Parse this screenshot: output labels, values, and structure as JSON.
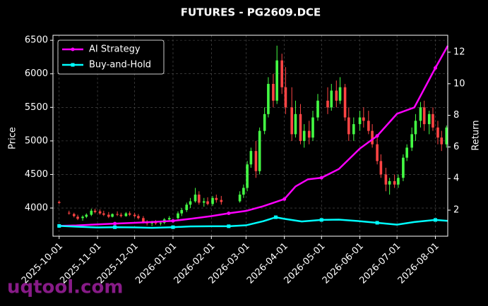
{
  "chart_data": {
    "type": "candlestick",
    "title": "FUTURES - PG2609.DCE",
    "ylabel": "Price",
    "y2label": "Return",
    "watermark": "uqtool.com",
    "background": "#000000",
    "grid": true,
    "legend_position": "upper left",
    "up_color": "#44ff44",
    "down_color": "#ff4444",
    "xlim": [
      "2025-09-26",
      "2026-08-11"
    ],
    "xticks": [
      "2025-10-01",
      "2025-11-01",
      "2025-12-01",
      "2026-01-01",
      "2026-02-01",
      "2026-03-01",
      "2026-04-01",
      "2026-05-01",
      "2026-06-01",
      "2026-07-01",
      "2026-08-01"
    ],
    "ylim": [
      3580,
      6575
    ],
    "yticks": [
      4000,
      4500,
      5000,
      5500,
      6000,
      6500
    ],
    "y2lim": [
      0.35,
      13.07
    ],
    "y2ticks": [
      2,
      4,
      6,
      8,
      10,
      12
    ],
    "candles": {
      "x": [
        "2025-10-01",
        "2025-10-09",
        "2025-10-13",
        "2025-10-16",
        "2025-10-20",
        "2025-10-23",
        "2025-10-27",
        "2025-10-30",
        "2025-11-03",
        "2025-11-06",
        "2025-11-10",
        "2025-11-13",
        "2025-11-17",
        "2025-11-20",
        "2025-11-24",
        "2025-11-27",
        "2025-12-01",
        "2025-12-04",
        "2025-12-08",
        "2025-12-11",
        "2025-12-15",
        "2025-12-18",
        "2025-12-22",
        "2025-12-25",
        "2025-12-29",
        "2026-01-05",
        "2026-01-08",
        "2026-01-12",
        "2026-01-15",
        "2026-01-19",
        "2026-01-22",
        "2026-01-26",
        "2026-01-29",
        "2026-02-02",
        "2026-02-05",
        "2026-02-09",
        "2026-02-24",
        "2026-02-27",
        "2026-03-02",
        "2026-03-05",
        "2026-03-09",
        "2026-03-12",
        "2026-03-16",
        "2026-03-19",
        "2026-03-23",
        "2026-03-26",
        "2026-03-30",
        "2026-04-02",
        "2026-04-07",
        "2026-04-10",
        "2026-04-14",
        "2026-04-17",
        "2026-04-21",
        "2026-04-24",
        "2026-04-28",
        "2026-05-06",
        "2026-05-09",
        "2026-05-13",
        "2026-05-16",
        "2026-05-20",
        "2026-05-23",
        "2026-05-27",
        "2026-06-01",
        "2026-06-04",
        "2026-06-08",
        "2026-06-11",
        "2026-06-15",
        "2026-06-18",
        "2026-06-22",
        "2026-06-25",
        "2026-06-29",
        "2026-07-02",
        "2026-07-06",
        "2026-07-09",
        "2026-07-13",
        "2026-07-16",
        "2026-07-20",
        "2026-07-23",
        "2026-07-27",
        "2026-07-30",
        "2026-08-03",
        "2026-08-06",
        "2026-08-10"
      ],
      "open": [
        4090,
        3930,
        3910,
        3870,
        3850,
        3870,
        3900,
        3960,
        3950,
        3920,
        3900,
        3870,
        3910,
        3900,
        3880,
        3920,
        3900,
        3880,
        3850,
        3790,
        3770,
        3790,
        3770,
        3780,
        3830,
        3850,
        3920,
        3970,
        4050,
        4100,
        4200,
        4080,
        4100,
        4060,
        4150,
        4120,
        4100,
        4200,
        4300,
        4650,
        4850,
        4550,
        5150,
        5400,
        5850,
        5600,
        6200,
        5800,
        5500,
        5100,
        5400,
        5000,
        5150,
        5050,
        5350,
        5600,
        5500,
        5750,
        5600,
        5800,
        5350,
        5100,
        5250,
        5350,
        5300,
        5150,
        4950,
        4700,
        4500,
        4350,
        4400,
        4350,
        4450,
        4750,
        4900,
        5100,
        5300,
        5500,
        5250,
        5400,
        5200,
        5050,
        4950
      ],
      "high": [
        4110,
        3960,
        3930,
        3900,
        3890,
        3920,
        3990,
        3990,
        3980,
        3960,
        3940,
        3920,
        3950,
        3930,
        3940,
        3950,
        3930,
        3910,
        3880,
        3820,
        3810,
        3820,
        3800,
        3850,
        3880,
        3950,
        4000,
        4080,
        4150,
        4300,
        4250,
        4150,
        4160,
        4180,
        4200,
        4180,
        4250,
        4350,
        4700,
        4900,
        5000,
        5200,
        5500,
        5950,
        6000,
        6420,
        6300,
        6100,
        5800,
        5600,
        5550,
        5250,
        5300,
        5450,
        5700,
        5800,
        5850,
        5900,
        5950,
        5850,
        5500,
        5350,
        5450,
        5500,
        5450,
        5250,
        5050,
        4800,
        4600,
        4450,
        4500,
        4500,
        4800,
        4950,
        5200,
        5400,
        5580,
        5600,
        5450,
        5500,
        5300,
        5150,
        5230
      ],
      "low": [
        4060,
        3900,
        3860,
        3820,
        3810,
        3850,
        3880,
        3920,
        3900,
        3880,
        3850,
        3860,
        3880,
        3860,
        3870,
        3880,
        3860,
        3830,
        3770,
        3740,
        3730,
        3750,
        3740,
        3760,
        3800,
        3830,
        3880,
        3940,
        4000,
        4080,
        4050,
        4020,
        4040,
        4030,
        4080,
        4050,
        4080,
        4150,
        4250,
        4600,
        4450,
        4500,
        5100,
        5350,
        5500,
        5550,
        5700,
        5400,
        5000,
        5050,
        4950,
        4900,
        4950,
        5000,
        5300,
        5400,
        5450,
        5500,
        5550,
        5300,
        5000,
        5000,
        5150,
        5200,
        5100,
        4900,
        4650,
        4450,
        4250,
        4200,
        4300,
        4300,
        4400,
        4700,
        4850,
        5000,
        5200,
        5150,
        5100,
        5150,
        4950,
        4850,
        4900
      ],
      "close": [
        4075,
        3920,
        3880,
        3840,
        3870,
        3900,
        3960,
        3940,
        3920,
        3900,
        3870,
        3910,
        3900,
        3880,
        3920,
        3900,
        3880,
        3850,
        3790,
        3770,
        3790,
        3770,
        3780,
        3830,
        3850,
        3920,
        3970,
        4050,
        4100,
        4200,
        4080,
        4100,
        4060,
        4150,
        4120,
        4090,
        4200,
        4300,
        4650,
        4850,
        4550,
        5150,
        5400,
        5850,
        5600,
        6200,
        5800,
        5500,
        5100,
        5400,
        5000,
        5150,
        5050,
        5350,
        5600,
        5500,
        5750,
        5600,
        5800,
        5350,
        5100,
        5250,
        5350,
        5300,
        5150,
        4950,
        4700,
        4500,
        4350,
        4400,
        4350,
        4450,
        4750,
        4900,
        5100,
        5300,
        5500,
        5250,
        5400,
        5200,
        5050,
        4950,
        5200
      ]
    },
    "series": [
      {
        "name": "AI Strategy",
        "color": "#ff00ff",
        "axis": "y2",
        "marker": "circle",
        "x": [
          "2025-10-01",
          "2025-10-15",
          "2025-11-01",
          "2025-11-15",
          "2025-12-01",
          "2025-12-15",
          "2026-01-01",
          "2026-01-15",
          "2026-02-01",
          "2026-02-15",
          "2026-03-01",
          "2026-03-15",
          "2026-04-01",
          "2026-04-10",
          "2026-04-20",
          "2026-05-01",
          "2026-05-15",
          "2026-06-01",
          "2026-06-15",
          "2026-07-01",
          "2026-07-15",
          "2026-08-01",
          "2026-08-11"
        ],
        "values": [
          1.0,
          1.03,
          1.1,
          1.15,
          1.2,
          1.25,
          1.32,
          1.45,
          1.62,
          1.8,
          1.95,
          2.25,
          2.7,
          3.5,
          3.95,
          4.05,
          4.6,
          5.9,
          6.7,
          8.1,
          8.5,
          11.0,
          12.4
        ]
      },
      {
        "name": "Buy-and-Hold",
        "color": "#00ffff",
        "axis": "y2",
        "marker": "square",
        "x": [
          "2025-10-01",
          "2025-10-15",
          "2025-11-01",
          "2025-11-15",
          "2025-12-01",
          "2025-12-15",
          "2026-01-01",
          "2026-01-15",
          "2026-02-01",
          "2026-02-15",
          "2026-03-01",
          "2026-03-15",
          "2026-03-25",
          "2026-04-01",
          "2026-04-15",
          "2026-05-01",
          "2026-05-15",
          "2026-06-01",
          "2026-06-15",
          "2026-07-01",
          "2026-07-15",
          "2026-08-01",
          "2026-08-11"
        ],
        "values": [
          1.0,
          0.95,
          0.9,
          0.92,
          0.91,
          0.88,
          0.92,
          0.97,
          0.98,
          0.98,
          1.04,
          1.3,
          1.55,
          1.45,
          1.28,
          1.38,
          1.4,
          1.3,
          1.2,
          1.08,
          1.25,
          1.38,
          1.32
        ]
      }
    ]
  }
}
